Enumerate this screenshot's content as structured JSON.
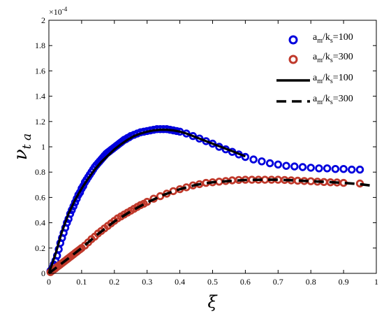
{
  "chart_data": {
    "type": "scatter",
    "xlabel": "ξ",
    "ylabel_main": "ν",
    "ylabel_sub": "t a",
    "y_exponent": "×10",
    "y_exponent_power": "-4",
    "xlim": [
      0,
      1
    ],
    "ylim": [
      0,
      2
    ],
    "x_ticks": [
      "0",
      "0.1",
      "0.2",
      "0.3",
      "0.4",
      "0.5",
      "0.6",
      "0.7",
      "0.8",
      "0.9",
      "1"
    ],
    "y_ticks": [
      "0",
      "0.2",
      "0.4",
      "0.6",
      "0.8",
      "1",
      "1.2",
      "1.4",
      "1.6",
      "1.8",
      "2"
    ],
    "legend_position": "top-right",
    "legend": [
      {
        "a": "a",
        "a_sub": "m",
        "k": "/k",
        "k_sub": "s",
        "value": "=100",
        "style": "marker",
        "color": "#0000dd"
      },
      {
        "a": "a",
        "a_sub": "m",
        "k": "/k",
        "k_sub": "s",
        "value": "=300",
        "style": "marker",
        "color": "#c0392b"
      },
      {
        "a": "a",
        "a_sub": "m",
        "k": "/k",
        "k_sub": "s",
        "value": "=100",
        "style": "solid",
        "color": "#000000"
      },
      {
        "a": "a",
        "a_sub": "m",
        "k": "/k",
        "k_sub": "s",
        "value": "=300",
        "style": "dashed",
        "color": "#000000"
      }
    ],
    "series": [
      {
        "kind": "markers",
        "color": "#0000dd",
        "x": [
          0.005,
          0.01,
          0.015,
          0.02,
          0.025,
          0.03,
          0.035,
          0.04,
          0.045,
          0.05,
          0.055,
          0.06,
          0.065,
          0.07,
          0.075,
          0.08,
          0.085,
          0.09,
          0.095,
          0.1,
          0.105,
          0.11,
          0.115,
          0.12,
          0.125,
          0.13,
          0.135,
          0.14,
          0.145,
          0.15,
          0.155,
          0.16,
          0.165,
          0.17,
          0.175,
          0.18,
          0.185,
          0.19,
          0.195,
          0.2,
          0.205,
          0.21,
          0.215,
          0.22,
          0.225,
          0.23,
          0.235,
          0.24,
          0.245,
          0.25,
          0.26,
          0.27,
          0.28,
          0.29,
          0.3,
          0.31,
          0.32,
          0.33,
          0.34,
          0.35,
          0.36,
          0.37,
          0.38,
          0.39,
          0.4,
          0.42,
          0.44,
          0.46,
          0.48,
          0.5,
          0.52,
          0.54,
          0.56,
          0.58,
          0.6,
          0.625,
          0.65,
          0.675,
          0.7,
          0.725,
          0.75,
          0.775,
          0.8,
          0.825,
          0.85,
          0.875,
          0.9,
          0.925,
          0.95
        ],
        "y": [
          0.02,
          0.04,
          0.07,
          0.1,
          0.14,
          0.19,
          0.24,
          0.28,
          0.32,
          0.36,
          0.4,
          0.43,
          0.47,
          0.5,
          0.53,
          0.56,
          0.59,
          0.62,
          0.64,
          0.67,
          0.69,
          0.72,
          0.74,
          0.76,
          0.78,
          0.8,
          0.82,
          0.84,
          0.855,
          0.87,
          0.885,
          0.9,
          0.915,
          0.93,
          0.945,
          0.955,
          0.965,
          0.975,
          0.985,
          0.995,
          1.005,
          1.015,
          1.025,
          1.035,
          1.045,
          1.055,
          1.06,
          1.07,
          1.075,
          1.085,
          1.095,
          1.105,
          1.115,
          1.12,
          1.125,
          1.13,
          1.135,
          1.14,
          1.14,
          1.14,
          1.14,
          1.135,
          1.13,
          1.125,
          1.12,
          1.105,
          1.085,
          1.065,
          1.045,
          1.025,
          1.0,
          0.98,
          0.96,
          0.94,
          0.92,
          0.9,
          0.885,
          0.87,
          0.86,
          0.85,
          0.845,
          0.84,
          0.835,
          0.83,
          0.83,
          0.825,
          0.825,
          0.82,
          0.82
        ]
      },
      {
        "kind": "markers",
        "color": "#c0392b",
        "x": [
          0.005,
          0.01,
          0.015,
          0.02,
          0.025,
          0.03,
          0.035,
          0.04,
          0.045,
          0.05,
          0.055,
          0.06,
          0.065,
          0.07,
          0.075,
          0.08,
          0.085,
          0.09,
          0.095,
          0.1,
          0.11,
          0.12,
          0.13,
          0.14,
          0.15,
          0.16,
          0.17,
          0.18,
          0.19,
          0.2,
          0.21,
          0.22,
          0.23,
          0.24,
          0.25,
          0.26,
          0.27,
          0.28,
          0.29,
          0.3,
          0.32,
          0.34,
          0.36,
          0.38,
          0.4,
          0.42,
          0.44,
          0.46,
          0.48,
          0.5,
          0.52,
          0.54,
          0.56,
          0.58,
          0.6,
          0.62,
          0.64,
          0.66,
          0.68,
          0.7,
          0.72,
          0.74,
          0.76,
          0.78,
          0.8,
          0.82,
          0.84,
          0.86,
          0.88,
          0.9,
          0.95
        ],
        "y": [
          0.01,
          0.02,
          0.03,
          0.04,
          0.05,
          0.06,
          0.07,
          0.08,
          0.09,
          0.1,
          0.11,
          0.12,
          0.13,
          0.14,
          0.15,
          0.16,
          0.17,
          0.18,
          0.19,
          0.2,
          0.22,
          0.245,
          0.27,
          0.29,
          0.315,
          0.335,
          0.355,
          0.375,
          0.395,
          0.415,
          0.435,
          0.45,
          0.465,
          0.48,
          0.495,
          0.51,
          0.525,
          0.54,
          0.55,
          0.565,
          0.59,
          0.61,
          0.63,
          0.65,
          0.665,
          0.68,
          0.695,
          0.705,
          0.715,
          0.72,
          0.725,
          0.73,
          0.735,
          0.738,
          0.74,
          0.74,
          0.74,
          0.74,
          0.74,
          0.74,
          0.738,
          0.735,
          0.732,
          0.73,
          0.728,
          0.725,
          0.722,
          0.72,
          0.718,
          0.715,
          0.71
        ]
      },
      {
        "kind": "solid",
        "color": "#000000",
        "x": [
          0,
          0.02,
          0.04,
          0.06,
          0.08,
          0.1,
          0.12,
          0.14,
          0.16,
          0.18,
          0.2,
          0.22,
          0.24,
          0.26,
          0.28,
          0.3,
          0.32,
          0.34,
          0.36,
          0.38,
          0.4,
          0.42,
          0.44,
          0.46,
          0.48,
          0.5,
          0.52,
          0.54,
          0.56,
          0.58,
          0.6
        ],
        "y": [
          0,
          0.15,
          0.33,
          0.47,
          0.58,
          0.67,
          0.75,
          0.82,
          0.88,
          0.93,
          0.98,
          1.02,
          1.055,
          1.085,
          1.105,
          1.12,
          1.13,
          1.135,
          1.135,
          1.13,
          1.12,
          1.105,
          1.085,
          1.065,
          1.045,
          1.025,
          1.005,
          0.985,
          0.965,
          0.945,
          0.925
        ]
      },
      {
        "kind": "dashed",
        "color": "#000000",
        "x": [
          0,
          0.05,
          0.1,
          0.15,
          0.2,
          0.25,
          0.3,
          0.35,
          0.4,
          0.45,
          0.5,
          0.55,
          0.6,
          0.65,
          0.7,
          0.75,
          0.8,
          0.85,
          0.9,
          0.95,
          0.98
        ],
        "y": [
          0,
          0.1,
          0.2,
          0.31,
          0.41,
          0.49,
          0.56,
          0.62,
          0.665,
          0.7,
          0.72,
          0.73,
          0.738,
          0.74,
          0.74,
          0.735,
          0.728,
          0.722,
          0.715,
          0.705,
          0.695
        ]
      }
    ]
  }
}
